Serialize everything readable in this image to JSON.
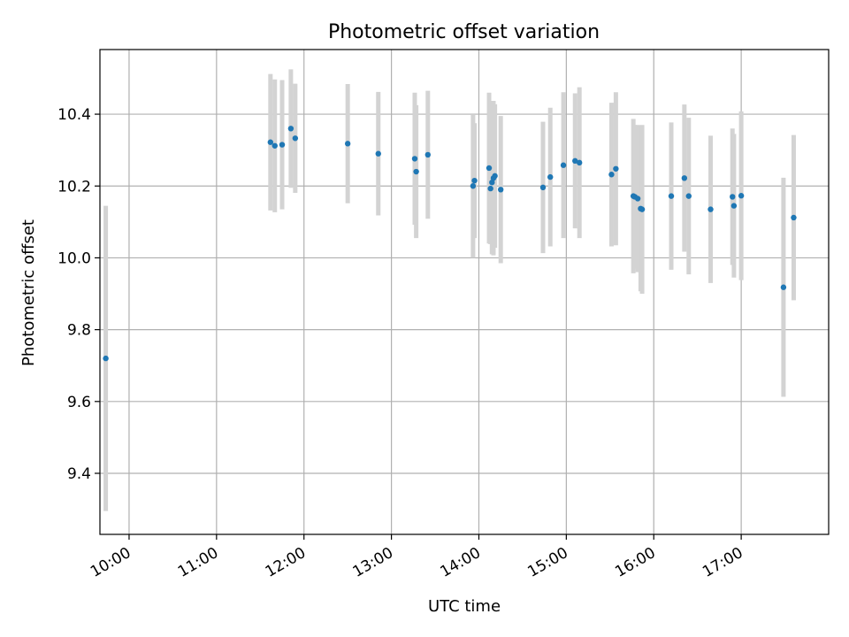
{
  "chart_data": {
    "type": "scatter",
    "title": "Photometric offset variation",
    "xlabel": "UTC time",
    "ylabel": "Photometric offset",
    "x_unit": "UTC hours",
    "xlim": [
      "09:40",
      "18:00"
    ],
    "ylim": [
      9.23,
      10.58
    ],
    "x_ticks": [
      "10:00",
      "11:00",
      "12:00",
      "13:00",
      "14:00",
      "15:00",
      "16:00",
      "17:00"
    ],
    "y_ticks": [
      "9.4",
      "9.6",
      "9.8",
      "10.0",
      "10.2",
      "10.4"
    ],
    "grid": true,
    "legend": "none",
    "point_color": "#1f77b4",
    "errorbar_color": "#d3d3d3",
    "points": [
      {
        "x": "09:44",
        "y": 9.72,
        "err": 0.425
      },
      {
        "x": "11:37",
        "y": 10.322,
        "err": 0.19
      },
      {
        "x": "11:40",
        "y": 10.312,
        "err": 0.185
      },
      {
        "x": "11:45",
        "y": 10.315,
        "err": 0.18
      },
      {
        "x": "11:51",
        "y": 10.36,
        "err": 0.165
      },
      {
        "x": "11:54",
        "y": 10.333,
        "err": 0.152
      },
      {
        "x": "12:30",
        "y": 10.318,
        "err": 0.166
      },
      {
        "x": "12:51",
        "y": 10.29,
        "err": 0.172
      },
      {
        "x": "13:16",
        "y": 10.276,
        "err": 0.184
      },
      {
        "x": "13:17",
        "y": 10.24,
        "err": 0.185
      },
      {
        "x": "13:25",
        "y": 10.287,
        "err": 0.178
      },
      {
        "x": "13:56",
        "y": 10.2,
        "err": 0.2
      },
      {
        "x": "13:57",
        "y": 10.215,
        "err": 0.16
      },
      {
        "x": "14:07",
        "y": 10.25,
        "err": 0.21
      },
      {
        "x": "14:08",
        "y": 10.193,
        "err": 0.155
      },
      {
        "x": "14:09",
        "y": 10.21,
        "err": 0.2
      },
      {
        "x": "14:10",
        "y": 10.222,
        "err": 0.215
      },
      {
        "x": "14:11",
        "y": 10.228,
        "err": 0.2
      },
      {
        "x": "14:15",
        "y": 10.19,
        "err": 0.205
      },
      {
        "x": "14:44",
        "y": 10.196,
        "err": 0.183
      },
      {
        "x": "14:49",
        "y": 10.225,
        "err": 0.193
      },
      {
        "x": "14:58",
        "y": 10.258,
        "err": 0.203
      },
      {
        "x": "15:06",
        "y": 10.27,
        "err": 0.188
      },
      {
        "x": "15:09",
        "y": 10.265,
        "err": 0.21
      },
      {
        "x": "15:31",
        "y": 10.232,
        "err": 0.2
      },
      {
        "x": "15:34",
        "y": 10.248,
        "err": 0.213
      },
      {
        "x": "15:46",
        "y": 10.172,
        "err": 0.215
      },
      {
        "x": "15:47",
        "y": 10.17,
        "err": 0.2
      },
      {
        "x": "15:49",
        "y": 10.165,
        "err": 0.205
      },
      {
        "x": "15:51",
        "y": 10.137,
        "err": 0.23
      },
      {
        "x": "15:52",
        "y": 10.135,
        "err": 0.235
      },
      {
        "x": "16:12",
        "y": 10.172,
        "err": 0.205
      },
      {
        "x": "16:21",
        "y": 10.222,
        "err": 0.205
      },
      {
        "x": "16:24",
        "y": 10.172,
        "err": 0.218
      },
      {
        "x": "16:39",
        "y": 10.135,
        "err": 0.205
      },
      {
        "x": "16:54",
        "y": 10.17,
        "err": 0.19
      },
      {
        "x": "16:55",
        "y": 10.145,
        "err": 0.2
      },
      {
        "x": "17:00",
        "y": 10.173,
        "err": 0.235
      },
      {
        "x": "17:29",
        "y": 9.918,
        "err": 0.305
      },
      {
        "x": "17:36",
        "y": 10.112,
        "err": 0.23
      }
    ]
  }
}
